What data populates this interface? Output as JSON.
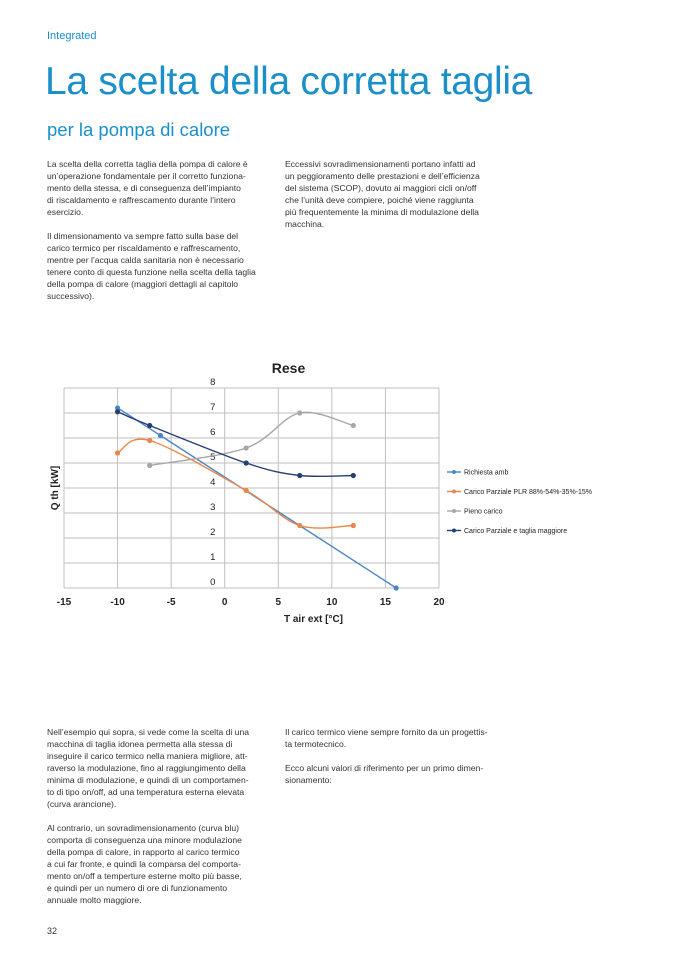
{
  "header": {
    "section": "Integrated",
    "title": "La scelta della corretta taglia",
    "subtitle": "per la pompa di calore"
  },
  "intro_left": [
    [
      "La scelta della corretta taglia della pompa di calore è",
      "un’operazione fondamentale per il corretto funziona-",
      "mento della stessa, e di conseguenza dell’impianto",
      "di riscaldamento e raffrescamento durante l’intero",
      "esercizio."
    ],
    [
      "Il dimensionamento va sempre fatto sulla base del",
      "carico termico per riscaldamento e raffrescamento,",
      "mentre per l’acqua calda sanitaria non è necessario",
      "tenere conto di questa funzione nella scelta della taglia",
      "della pompa di calore (maggiori dettagli al capitolo",
      "successivo)."
    ]
  ],
  "intro_right": [
    [
      "Eccessivi sovradimensionamenti portano infatti ad",
      "un peggioramento delle prestazioni e dell’efficienza",
      "del sistema (SCOP), dovuto ai maggiori cicli on/off",
      "che l’unità deve compiere, poiché viene raggiunta",
      "più frequentemente la minima di modulazione della",
      "macchina."
    ]
  ],
  "body_left": [
    [
      "Nell’esempio qui sopra, si vede come la scelta di una",
      "macchina di taglia idonea permetta alla stessa di",
      "inseguire il carico termico nella maniera migliore, att-",
      "raverso la modulazione, fino al raggiungimento della",
      "minima di modulazione, e quindi di un comportamen-",
      "to di tipo on/off, ad una temperatura esterna elevata",
      "(curva arancione)."
    ],
    [
      "Al contrario, un sovradimensionamento (curva blu)",
      "comporta di conseguenza una minore modulazione",
      "della pompa di calore, in rapporto al carico termico",
      "a cui far fronte, e quindi la comparsa del comporta-",
      "mento on/off a temperture esterne molto più basse,",
      "e quindi per un numero di ore di funzionamento",
      "annuale molto maggiore."
    ]
  ],
  "body_right": [
    [
      "Il carico termico viene sempre fornito da un progettis-",
      "ta termotecnico."
    ],
    [
      "Ecco alcuni valori di riferimento per un primo dimen-",
      "sionamento:"
    ]
  ],
  "page_number": "32",
  "chart_data": {
    "type": "line",
    "title": "Rese",
    "xlabel": "T air ext [°C]",
    "ylabel": "Q th [kW]",
    "xlim": [
      -15,
      20
    ],
    "ylim": [
      0,
      8
    ],
    "xticks": [
      "-15",
      "-10",
      "-5",
      "0",
      "5",
      "10",
      "15",
      "20"
    ],
    "yticks": [
      "0",
      "1",
      "2",
      "3",
      "4",
      "5",
      "6",
      "7",
      "8"
    ],
    "grid": true,
    "smooth": true,
    "legend_position": "right",
    "series": [
      {
        "name": "Richiesta amb",
        "color": "#4a86c5",
        "points": [
          [
            -10,
            7.2
          ],
          [
            -6,
            6.1
          ],
          [
            16,
            0
          ]
        ]
      },
      {
        "name": "Carico Parziale PLR 88%-54%-35%-15%",
        "color": "#e8874a",
        "points": [
          [
            -10,
            5.4
          ],
          [
            -7,
            5.9
          ],
          [
            2,
            3.9
          ],
          [
            7,
            2.5
          ],
          [
            12,
            2.5
          ]
        ]
      },
      {
        "name": "Pieno carico",
        "color": "#a6a6a6",
        "points": [
          [
            -7,
            4.9
          ],
          [
            2,
            5.6
          ],
          [
            7,
            7.0
          ],
          [
            12,
            6.5
          ]
        ]
      },
      {
        "name": "Carico Parziale e taglia maggiore",
        "color": "#243f73",
        "points": [
          [
            -10,
            7.05
          ],
          [
            -7,
            6.5
          ],
          [
            2,
            5.0
          ],
          [
            7,
            4.5
          ],
          [
            12,
            4.5
          ]
        ]
      }
    ]
  }
}
